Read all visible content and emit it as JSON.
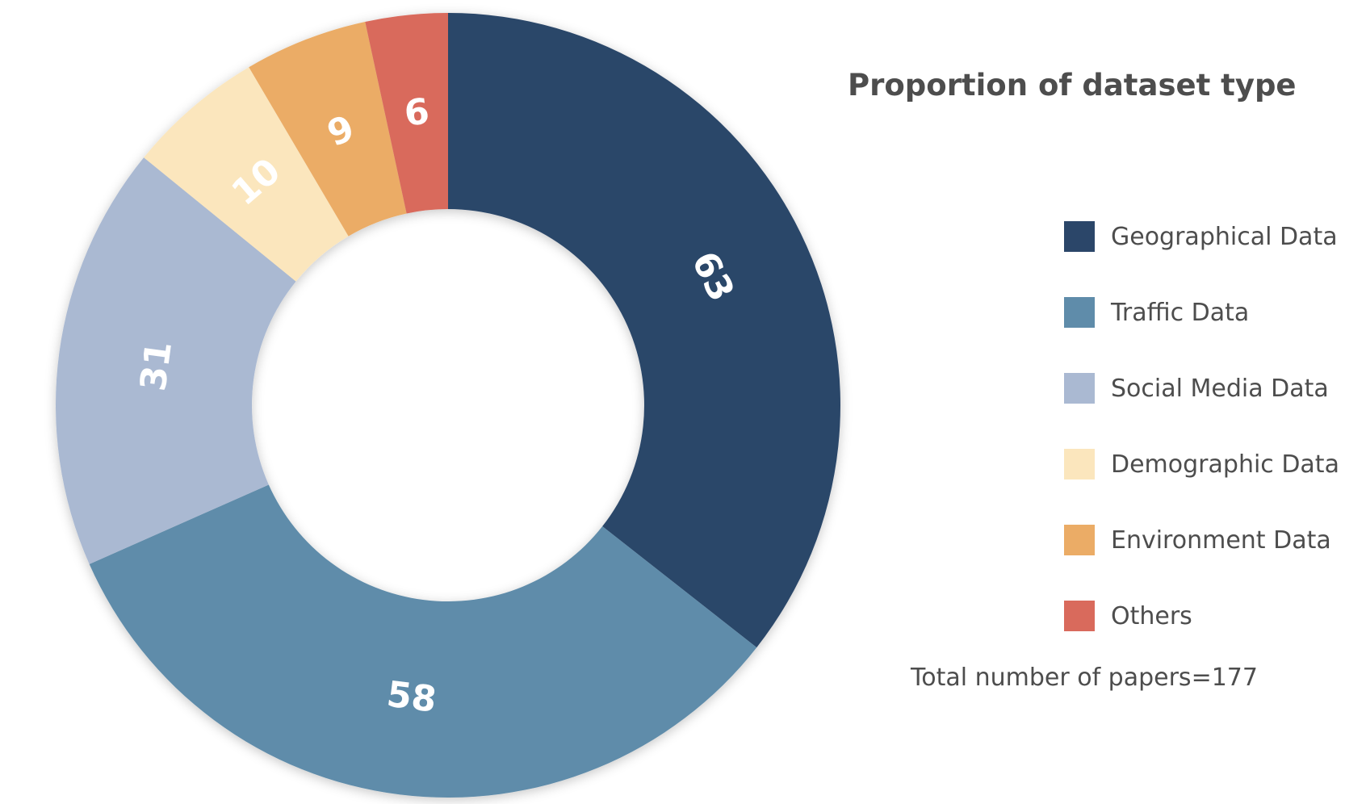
{
  "chart_data": {
    "type": "pie",
    "donut": true,
    "title": "Proportion of dataset type",
    "categories": [
      "Geographical Data",
      "Traffic Data",
      "Social Media Data",
      "Demographic Data",
      "Environment Data",
      "Others"
    ],
    "values": [
      63,
      58,
      31,
      10,
      9,
      6
    ],
    "value_labels": [
      "63",
      "58",
      "31",
      "10",
      "9",
      "6"
    ],
    "colors": [
      "#2b4669",
      "#5f8caa",
      "#aab9d2",
      "#fbe6bd",
      "#ebac66",
      "#d96a5c"
    ],
    "legend_position": "right",
    "note": "Total number of papers=177"
  }
}
